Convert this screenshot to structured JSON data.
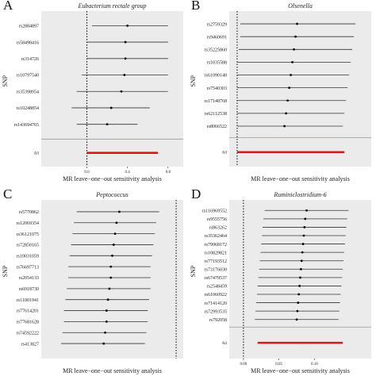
{
  "chart_data": [
    {
      "type": "forest",
      "panel_letter": "A",
      "title": "Eubacterium rectale group",
      "ylabel": "SNP",
      "xlabel": "MR leave−one−out sensitivity analysis",
      "xlim": [
        -0.45,
        0.95
      ],
      "xticks": [
        {
          "value": 0.0,
          "label": "0.0"
        },
        {
          "value": 0.4,
          "label": "0.4"
        },
        {
          "value": 0.8,
          "label": "0.8"
        }
      ],
      "snps": [
        {
          "label": "rs2884897",
          "estimate": 0.4,
          "lower": 0.05,
          "upper": 0.8
        },
        {
          "label": "rs58498416",
          "estimate": 0.38,
          "lower": 0.0,
          "upper": 0.8
        },
        {
          "label": "rs314726",
          "estimate": 0.38,
          "lower": 0.0,
          "upper": 0.8
        },
        {
          "label": "rs10797540",
          "estimate": 0.37,
          "lower": -0.05,
          "upper": 0.8
        },
        {
          "label": "rs35398954",
          "estimate": 0.34,
          "lower": -0.1,
          "upper": 0.8
        },
        {
          "label": "rs10248854",
          "estimate": 0.24,
          "lower": -0.15,
          "upper": 0.62
        },
        {
          "label": "rs143694765",
          "estimate": 0.2,
          "lower": -0.1,
          "upper": 0.5
        }
      ],
      "overall": {
        "label": "All",
        "estimate": 0.35,
        "lower": 0.0,
        "upper": 0.7
      }
    },
    {
      "type": "forest",
      "panel_letter": "B",
      "title": "Olsenella",
      "ylabel": "SNP",
      "xlabel": "MR leave−one−out sensitivity analysis",
      "xlim": [
        -0.05,
        0.85
      ],
      "xticks": [],
      "snps": [
        {
          "label": "rs2759329",
          "estimate": 0.38,
          "lower": 0.02,
          "upper": 0.75
        },
        {
          "label": "rs9460691",
          "estimate": 0.37,
          "lower": 0.02,
          "upper": 0.74
        },
        {
          "label": "rs35225860",
          "estimate": 0.36,
          "lower": 0.01,
          "upper": 0.73
        },
        {
          "label": "rs1035588",
          "estimate": 0.35,
          "lower": 0.0,
          "upper": 0.72
        },
        {
          "label": "rs61090148",
          "estimate": 0.34,
          "lower": 0.0,
          "upper": 0.71
        },
        {
          "label": "rs7540303",
          "estimate": 0.33,
          "lower": 0.0,
          "upper": 0.7
        },
        {
          "label": "rs17148768",
          "estimate": 0.32,
          "lower": 0.0,
          "upper": 0.69
        },
        {
          "label": "rs62112538",
          "estimate": 0.31,
          "lower": 0.0,
          "upper": 0.68
        },
        {
          "label": "rs8066522",
          "estimate": 0.3,
          "lower": 0.0,
          "upper": 0.67
        }
      ],
      "overall": {
        "label": "All",
        "estimate": 0.34,
        "lower": 0.0,
        "upper": 0.68
      }
    },
    {
      "type": "forest",
      "panel_letter": "C",
      "title": "Peptococcus",
      "ylabel": "SNP",
      "xlabel": "MR leave−one−out sensitivity analysis",
      "xlim": [
        -0.95,
        0.05
      ],
      "xticks": [],
      "snps": [
        {
          "label": "rs5770862",
          "estimate": -0.4,
          "lower": -0.7,
          "upper": -0.12
        },
        {
          "label": "rs12069354",
          "estimate": -0.42,
          "lower": -0.72,
          "upper": -0.14
        },
        {
          "label": "rs36121075",
          "estimate": -0.43,
          "lower": -0.73,
          "upper": -0.15
        },
        {
          "label": "rs72850165",
          "estimate": -0.44,
          "lower": -0.74,
          "upper": -0.16
        },
        {
          "label": "rs10031059",
          "estimate": -0.45,
          "lower": -0.75,
          "upper": -0.17
        },
        {
          "label": "rs76697713",
          "estimate": -0.46,
          "lower": -0.76,
          "upper": -0.18
        },
        {
          "label": "rs2054133",
          "estimate": -0.46,
          "lower": -0.76,
          "upper": -0.18
        },
        {
          "label": "rs6918730",
          "estimate": -0.47,
          "lower": -0.77,
          "upper": -0.18
        },
        {
          "label": "rs11001941",
          "estimate": -0.48,
          "lower": -0.78,
          "upper": -0.19
        },
        {
          "label": "rs77614201",
          "estimate": -0.49,
          "lower": -0.79,
          "upper": -0.2
        },
        {
          "label": "rs77681628",
          "estimate": -0.49,
          "lower": -0.79,
          "upper": -0.2
        },
        {
          "label": "rs74592222",
          "estimate": -0.5,
          "lower": -0.8,
          "upper": -0.21
        },
        {
          "label": "rs413827",
          "estimate": -0.51,
          "lower": -0.81,
          "upper": -0.22
        }
      ],
      "overall": null
    },
    {
      "type": "forest",
      "panel_letter": "D",
      "title": "Ruminiclostridium-6",
      "ylabel": "SNP",
      "xlabel": "MR leave−one−out sensitivity analysis",
      "xlim": [
        -0.02,
        0.18
      ],
      "xticks": [
        {
          "value": 0.0,
          "label": "0.00"
        },
        {
          "value": 0.05,
          "label": "0.05"
        },
        {
          "value": 0.1,
          "label": "0.10"
        }
      ],
      "snps": [
        {
          "label": "rs116969552",
          "estimate": 0.089,
          "lower": 0.03,
          "upper": 0.148
        },
        {
          "label": "rs9555756",
          "estimate": 0.087,
          "lower": 0.028,
          "upper": 0.146
        },
        {
          "label": "rs863262",
          "estimate": 0.086,
          "lower": 0.027,
          "upper": 0.145
        },
        {
          "label": "rs35362464",
          "estimate": 0.085,
          "lower": 0.026,
          "upper": 0.144
        },
        {
          "label": "rs79968172",
          "estimate": 0.084,
          "lower": 0.025,
          "upper": 0.143
        },
        {
          "label": "rs10829821",
          "estimate": 0.083,
          "lower": 0.024,
          "upper": 0.142
        },
        {
          "label": "rs77193512",
          "estimate": 0.082,
          "lower": 0.023,
          "upper": 0.141
        },
        {
          "label": "rs73176030",
          "estimate": 0.081,
          "lower": 0.022,
          "upper": 0.14
        },
        {
          "label": "rs67479537",
          "estimate": 0.08,
          "lower": 0.021,
          "upper": 0.139
        },
        {
          "label": "rs2548459",
          "estimate": 0.079,
          "lower": 0.02,
          "upper": 0.138
        },
        {
          "label": "rs61060922",
          "estimate": 0.078,
          "lower": 0.019,
          "upper": 0.137
        },
        {
          "label": "rs71414120",
          "estimate": 0.077,
          "lower": 0.018,
          "upper": 0.136
        },
        {
          "label": "rs72993535",
          "estimate": 0.076,
          "lower": 0.017,
          "upper": 0.135
        },
        {
          "label": "rs792058",
          "estimate": 0.075,
          "lower": 0.016,
          "upper": 0.134
        }
      ],
      "overall": {
        "label": "All",
        "estimate": 0.08,
        "lower": 0.02,
        "upper": 0.14
      }
    }
  ],
  "colors": {
    "panel_bg": "#ebebeb",
    "ci_line": "#333333",
    "point": "#000000",
    "overall": "#d7191c",
    "divider": "#9a9a9a",
    "zero_line": "#000000",
    "text": "#222222"
  }
}
